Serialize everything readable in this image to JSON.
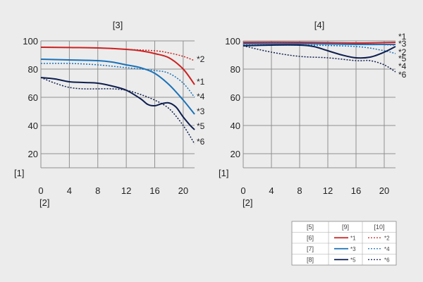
{
  "chart_data": [
    {
      "type": "line",
      "title": "[3]",
      "xlabel": "[2]",
      "ylabel": "[1]",
      "xlim": [
        0,
        21.6
      ],
      "ylim": [
        10,
        100
      ],
      "xticks": [
        0,
        4,
        8,
        12,
        16,
        20
      ],
      "yticks": [
        20,
        40,
        60,
        80,
        100
      ],
      "grid": true,
      "series": [
        {
          "name": "*1",
          "color": "#cc2222",
          "style": "solid",
          "x": [
            0,
            4,
            8,
            12,
            14,
            16,
            18,
            20,
            21.6
          ],
          "y": [
            95.5,
            95.3,
            95,
            94,
            93,
            91,
            88,
            80,
            69
          ]
        },
        {
          "name": "*2",
          "color": "#cc2222",
          "style": "dotted",
          "x": [
            0,
            4,
            8,
            12,
            16,
            18,
            20,
            21.6
          ],
          "y": [
            95.5,
            95.3,
            95,
            94,
            93,
            91.5,
            89,
            86
          ]
        },
        {
          "name": "*3",
          "color": "#1a72b8",
          "style": "solid",
          "x": [
            0,
            4,
            8,
            10,
            12,
            14,
            16,
            18,
            20,
            21.6
          ],
          "y": [
            87,
            86.5,
            86,
            85,
            83,
            81,
            77,
            69,
            58,
            48
          ]
        },
        {
          "name": "*4",
          "color": "#1a72b8",
          "style": "dotted",
          "x": [
            0,
            4,
            8,
            12,
            16,
            18,
            20,
            21.6
          ],
          "y": [
            84,
            84,
            83,
            81,
            79,
            77,
            70,
            60
          ]
        },
        {
          "name": "*5",
          "color": "#0e1e4e",
          "style": "solid",
          "x": [
            0,
            2,
            4,
            6,
            8,
            10,
            12,
            14,
            15,
            16,
            17,
            18,
            19,
            20,
            21,
            21.6
          ],
          "y": [
            74,
            73,
            71,
            70.5,
            70,
            68,
            65,
            59,
            55,
            54,
            55.5,
            56,
            53,
            46,
            40,
            37
          ]
        },
        {
          "name": "*6",
          "color": "#0e1e4e",
          "style": "dotted",
          "x": [
            0,
            2,
            4,
            6,
            8,
            10,
            12,
            14,
            16,
            18,
            20,
            21.6
          ],
          "y": [
            74,
            70,
            67,
            66,
            66,
            66,
            65,
            62,
            58,
            52,
            40,
            27
          ]
        }
      ]
    },
    {
      "type": "line",
      "title": "[4]",
      "xlabel": "[2]",
      "ylabel": "[1]",
      "xlim": [
        0,
        21.6
      ],
      "ylim": [
        10,
        100
      ],
      "xticks": [
        0,
        4,
        8,
        12,
        16,
        20
      ],
      "yticks": [
        20,
        40,
        60,
        80,
        100
      ],
      "grid": true,
      "series": [
        {
          "name": "*1",
          "color": "#cc2222",
          "style": "solid",
          "x": [
            0,
            8,
            16,
            21.6
          ],
          "y": [
            99,
            99,
            98.5,
            99
          ]
        },
        {
          "name": "*2",
          "color": "#cc2222",
          "style": "dotted",
          "x": [
            0,
            8,
            16,
            21.6
          ],
          "y": [
            99,
            98.5,
            98,
            97
          ]
        },
        {
          "name": "*3",
          "color": "#1a72b8",
          "style": "solid",
          "x": [
            0,
            8,
            16,
            21.6
          ],
          "y": [
            98,
            98,
            97.5,
            97.5
          ]
        },
        {
          "name": "*4",
          "color": "#1a72b8",
          "style": "dotted",
          "x": [
            0,
            8,
            16,
            20,
            21.6
          ],
          "y": [
            97,
            97,
            96,
            93,
            91
          ]
        },
        {
          "name": "*5",
          "color": "#0e1e4e",
          "style": "solid",
          "x": [
            0,
            4,
            8,
            10,
            12,
            14,
            16,
            18,
            20,
            21.6
          ],
          "y": [
            96.5,
            97,
            97,
            96,
            93,
            90,
            88,
            88.5,
            92,
            96
          ]
        },
        {
          "name": "*6",
          "color": "#0e1e4e",
          "style": "dotted",
          "x": [
            0,
            4,
            8,
            12,
            16,
            18,
            20,
            21.6
          ],
          "y": [
            96.5,
            92,
            89,
            88,
            86,
            86,
            83,
            78
          ]
        }
      ]
    }
  ],
  "legend": {
    "headers": [
      "[5]",
      "[9]",
      "[10]"
    ],
    "rows": [
      {
        "label": "[6]",
        "solid": "*1",
        "dotted": "*2",
        "color": "#cc2222"
      },
      {
        "label": "[7]",
        "solid": "*3",
        "dotted": "*4",
        "color": "#1a72b8"
      },
      {
        "label": "[8]",
        "solid": "*5",
        "dotted": "*6",
        "color": "#0e1e4e"
      }
    ]
  }
}
